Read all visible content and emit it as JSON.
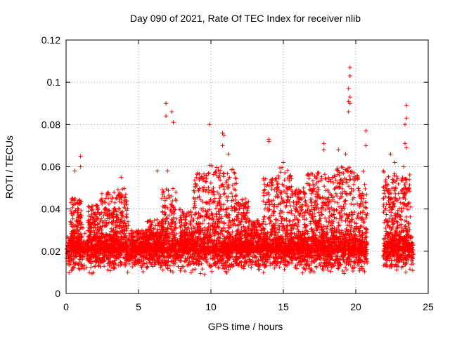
{
  "chart_data": {
    "type": "scatter",
    "title": "Day 090 of 2021, Rate Of TEC Index for receiver nlib",
    "xlabel": "GPS time / hours",
    "ylabel": "ROTI / TECUs",
    "xlim": [
      0,
      25
    ],
    "ylim": [
      0,
      0.12
    ],
    "x_ticks": [
      0,
      5,
      10,
      15,
      20,
      25
    ],
    "x_tick_labels": [
      "0",
      "5",
      "10",
      "15",
      "20",
      "25"
    ],
    "y_ticks": [
      0,
      0.02,
      0.04,
      0.06,
      0.08,
      0.1,
      0.12
    ],
    "y_tick_labels": [
      "0",
      "0.02",
      "0.04",
      "0.06",
      "0.08",
      "0.1",
      "0.12"
    ],
    "grid": true,
    "marker": "+",
    "color": "#ff0000",
    "data_gap_hours": [
      20.8,
      21.9
    ],
    "notable_points": [
      [
        0.6,
        0.058
      ],
      [
        1.0,
        0.065
      ],
      [
        1.0,
        0.06
      ],
      [
        3.8,
        0.055
      ],
      [
        6.3,
        0.058
      ],
      [
        6.9,
        0.09
      ],
      [
        6.9,
        0.084
      ],
      [
        7.3,
        0.086
      ],
      [
        7.4,
        0.081
      ],
      [
        7.0,
        0.058
      ],
      [
        9.9,
        0.08
      ],
      [
        10.8,
        0.076
      ],
      [
        10.9,
        0.075
      ],
      [
        10.8,
        0.07
      ],
      [
        11.2,
        0.066
      ],
      [
        14.0,
        0.073
      ],
      [
        14.0,
        0.072
      ],
      [
        15.0,
        0.062
      ],
      [
        17.8,
        0.071
      ],
      [
        17.8,
        0.068
      ],
      [
        18.8,
        0.068
      ],
      [
        19.3,
        0.066
      ],
      [
        19.6,
        0.107
      ],
      [
        19.6,
        0.103
      ],
      [
        19.5,
        0.097
      ],
      [
        19.6,
        0.093
      ],
      [
        19.5,
        0.091
      ],
      [
        19.6,
        0.09
      ],
      [
        19.5,
        0.086
      ],
      [
        20.7,
        0.077
      ],
      [
        20.7,
        0.07
      ],
      [
        21.9,
        0.058
      ],
      [
        22.4,
        0.066
      ],
      [
        22.7,
        0.062
      ],
      [
        23.5,
        0.089
      ],
      [
        23.5,
        0.083
      ],
      [
        23.4,
        0.08
      ],
      [
        23.4,
        0.071
      ],
      [
        23.5,
        0.069
      ],
      [
        23.3,
        0.06
      ]
    ],
    "bursts": [
      [
        0.3,
        1.1,
        0.045
      ],
      [
        1.5,
        2.4,
        0.042
      ],
      [
        2.4,
        3.4,
        0.048
      ],
      [
        3.4,
        4.3,
        0.05
      ],
      [
        4.5,
        5.6,
        0.03
      ],
      [
        5.6,
        6.6,
        0.035
      ],
      [
        6.6,
        7.6,
        0.05
      ],
      [
        7.8,
        8.8,
        0.04
      ],
      [
        8.8,
        9.8,
        0.058
      ],
      [
        9.8,
        10.8,
        0.062
      ],
      [
        10.8,
        11.8,
        0.06
      ],
      [
        11.8,
        12.6,
        0.045
      ],
      [
        12.6,
        13.6,
        0.035
      ],
      [
        13.6,
        14.6,
        0.055
      ],
      [
        14.6,
        15.6,
        0.06
      ],
      [
        15.6,
        16.6,
        0.05
      ],
      [
        16.6,
        17.6,
        0.058
      ],
      [
        17.6,
        18.6,
        0.057
      ],
      [
        18.6,
        19.6,
        0.06
      ],
      [
        19.6,
        20.8,
        0.058
      ],
      [
        21.9,
        22.8,
        0.058
      ],
      [
        22.8,
        23.8,
        0.057
      ]
    ]
  }
}
